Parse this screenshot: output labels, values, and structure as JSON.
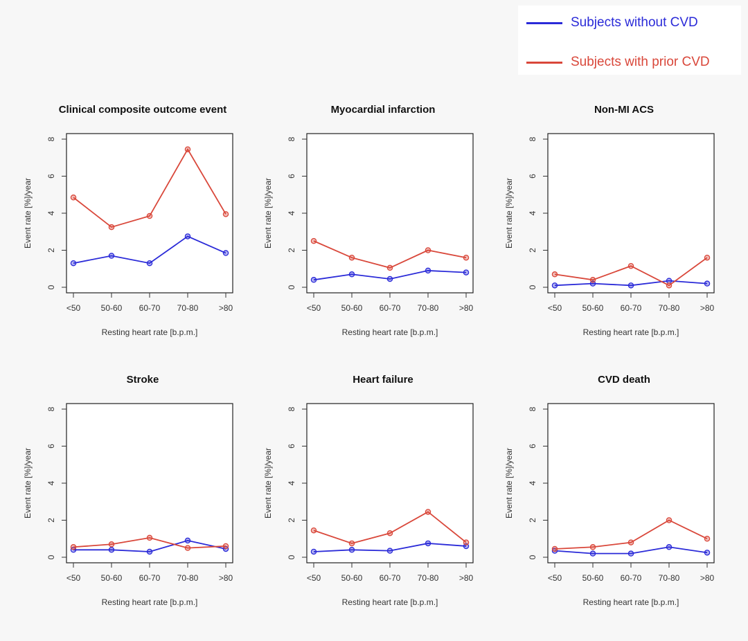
{
  "legend": {
    "without": {
      "label": "Subjects without CVD",
      "color": "#2a2ad8"
    },
    "with": {
      "label": "Subjects with prior CVD",
      "color": "#d9473a"
    }
  },
  "chart_data": [
    {
      "type": "line",
      "title": "Clinical composite outcome event",
      "xlabel": "Resting heart rate [b.p.m.]",
      "ylabel": "Event rate [%]/year",
      "categories": [
        "<50",
        "50-60",
        "60-70",
        "70-80",
        ">80"
      ],
      "ylim": [
        0,
        8
      ],
      "yticks": [
        0,
        2,
        4,
        6,
        8
      ],
      "series": [
        {
          "name": "Subjects without CVD",
          "values": [
            1.3,
            1.7,
            1.3,
            2.75,
            1.85
          ]
        },
        {
          "name": "Subjects with prior CVD",
          "values": [
            4.85,
            3.25,
            3.85,
            7.45,
            3.95
          ]
        }
      ]
    },
    {
      "type": "line",
      "title": "Myocardial infarction",
      "xlabel": "Resting heart rate [b.p.m.]",
      "ylabel": "Event rate [%]/year",
      "categories": [
        "<50",
        "50-60",
        "60-70",
        "70-80",
        ">80"
      ],
      "ylim": [
        0,
        8
      ],
      "yticks": [
        0,
        2,
        4,
        6,
        8
      ],
      "series": [
        {
          "name": "Subjects without CVD",
          "values": [
            0.4,
            0.7,
            0.45,
            0.9,
            0.8
          ]
        },
        {
          "name": "Subjects with prior CVD",
          "values": [
            2.5,
            1.6,
            1.05,
            2.0,
            1.6
          ]
        }
      ]
    },
    {
      "type": "line",
      "title": "Non-MI ACS",
      "xlabel": "Resting heart rate [b.p.m.]",
      "ylabel": "Event rate [%]/year",
      "categories": [
        "<50",
        "50-60",
        "60-70",
        "70-80",
        ">80"
      ],
      "ylim": [
        0,
        8
      ],
      "yticks": [
        0,
        2,
        4,
        6,
        8
      ],
      "series": [
        {
          "name": "Subjects without CVD",
          "values": [
            0.1,
            0.2,
            0.1,
            0.35,
            0.2
          ]
        },
        {
          "name": "Subjects with prior CVD",
          "values": [
            0.7,
            0.4,
            1.15,
            0.1,
            1.6
          ]
        }
      ]
    },
    {
      "type": "line",
      "title": "Stroke",
      "xlabel": "Resting heart rate [b.p.m.]",
      "ylabel": "Event rate [%]/year",
      "categories": [
        "<50",
        "50-60",
        "60-70",
        "70-80",
        ">80"
      ],
      "ylim": [
        0,
        8
      ],
      "yticks": [
        0,
        2,
        4,
        6,
        8
      ],
      "series": [
        {
          "name": "Subjects without CVD",
          "values": [
            0.4,
            0.4,
            0.3,
            0.9,
            0.45
          ]
        },
        {
          "name": "Subjects with prior CVD",
          "values": [
            0.55,
            0.7,
            1.05,
            0.5,
            0.6
          ]
        }
      ]
    },
    {
      "type": "line",
      "title": "Heart failure",
      "xlabel": "Resting heart rate [b.p.m.]",
      "ylabel": "Event rate [%]/year",
      "categories": [
        "<50",
        "50-60",
        "60-70",
        "70-80",
        ">80"
      ],
      "ylim": [
        0,
        8
      ],
      "yticks": [
        0,
        2,
        4,
        6,
        8
      ],
      "series": [
        {
          "name": "Subjects without CVD",
          "values": [
            0.3,
            0.4,
            0.35,
            0.75,
            0.6
          ]
        },
        {
          "name": "Subjects with prior CVD",
          "values": [
            1.45,
            0.75,
            1.3,
            2.45,
            0.8
          ]
        }
      ]
    },
    {
      "type": "line",
      "title": "CVD death",
      "xlabel": "Resting heart rate [b.p.m.]",
      "ylabel": "Event rate [%]/year",
      "categories": [
        "<50",
        "50-60",
        "60-70",
        "70-80",
        ">80"
      ],
      "ylim": [
        0,
        8
      ],
      "yticks": [
        0,
        2,
        4,
        6,
        8
      ],
      "series": [
        {
          "name": "Subjects without CVD",
          "values": [
            0.35,
            0.2,
            0.2,
            0.55,
            0.25
          ]
        },
        {
          "name": "Subjects with prior CVD",
          "values": [
            0.45,
            0.55,
            0.8,
            2.0,
            1.0
          ]
        }
      ]
    }
  ]
}
